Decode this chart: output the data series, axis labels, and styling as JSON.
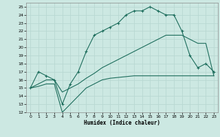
{
  "xlabel": "Humidex (Indice chaleur)",
  "xlim": [
    -0.5,
    23.5
  ],
  "ylim": [
    12,
    25.5
  ],
  "yticks": [
    12,
    13,
    14,
    15,
    16,
    17,
    18,
    19,
    20,
    21,
    22,
    23,
    24,
    25
  ],
  "xticks": [
    0,
    1,
    2,
    3,
    4,
    5,
    6,
    7,
    8,
    9,
    10,
    11,
    12,
    13,
    14,
    15,
    16,
    17,
    18,
    19,
    20,
    21,
    22,
    23
  ],
  "bg_color": "#cce8e2",
  "line_color": "#1a6b5a",
  "grid_color": "#b8d8d2",
  "line_top_x": [
    0,
    1,
    2,
    3,
    4,
    5,
    6,
    7,
    8,
    9,
    10,
    11,
    12,
    13,
    14,
    15,
    16,
    17,
    18,
    19,
    20,
    21,
    22,
    23
  ],
  "line_top_y": [
    15,
    17,
    16.5,
    16,
    13,
    15.5,
    17,
    19.5,
    21.5,
    22,
    22.5,
    23,
    24,
    24.5,
    24.5,
    25,
    24.5,
    24,
    24,
    22,
    19,
    17.5,
    18,
    17
  ],
  "line_mid_x": [
    0,
    1,
    2,
    3,
    4,
    5,
    6,
    7,
    8,
    9,
    10,
    11,
    12,
    13,
    14,
    15,
    16,
    17,
    18,
    19,
    20,
    21,
    22,
    23
  ],
  "line_mid_y": [
    15,
    15.5,
    16,
    16,
    14.5,
    15,
    15.5,
    16.2,
    16.8,
    17.5,
    18,
    18.5,
    19,
    19.5,
    20,
    20.5,
    21,
    21.5,
    21.5,
    21.5,
    21,
    20.5,
    20.5,
    16.5
  ],
  "line_bot_x": [
    0,
    1,
    2,
    3,
    4,
    5,
    6,
    7,
    8,
    9,
    10,
    11,
    12,
    13,
    14,
    15,
    16,
    17,
    18,
    19,
    20,
    21,
    22,
    23
  ],
  "line_bot_y": [
    15,
    15.2,
    15.5,
    15.5,
    12,
    13,
    14,
    15,
    15.5,
    16,
    16.2,
    16.3,
    16.4,
    16.5,
    16.5,
    16.5,
    16.5,
    16.5,
    16.5,
    16.5,
    16.5,
    16.5,
    16.5,
    16.5
  ]
}
